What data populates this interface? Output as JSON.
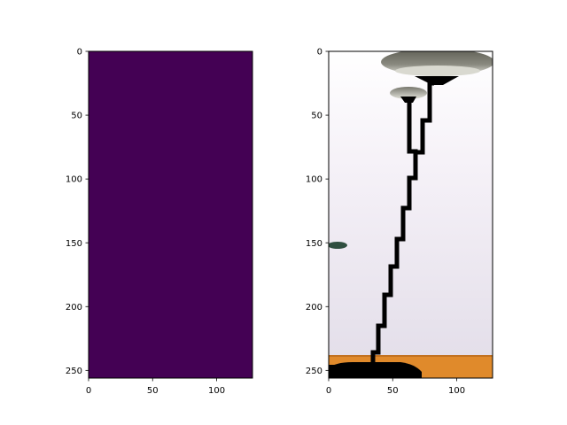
{
  "chart_data": [
    {
      "type": "heatmap",
      "panel": "left",
      "image_shape": [
        256,
        128
      ],
      "colormap": "viridis",
      "fill_color": "#440154",
      "uniform_value": 0,
      "xlim": [
        0,
        128
      ],
      "ylim": [
        256,
        0
      ],
      "x_ticks": [
        0,
        50,
        100
      ],
      "y_ticks": [
        0,
        50,
        100,
        150,
        200,
        250
      ]
    },
    {
      "type": "image",
      "panel": "right",
      "image_shape": [
        256,
        128
      ],
      "content": "floor-lamp-photo",
      "xlim": [
        0,
        128
      ],
      "ylim": [
        256,
        0
      ],
      "x_ticks": [
        0,
        50,
        100
      ],
      "y_ticks": [
        0,
        50,
        100,
        150,
        200,
        250
      ],
      "colors": {
        "wall": "#efe9f3",
        "floor": "#e08a2b",
        "lamp": "#000000",
        "shade_top": "#6f6f62",
        "shade_light": "#e8e8e0",
        "plant": "#2f4f40"
      }
    }
  ]
}
